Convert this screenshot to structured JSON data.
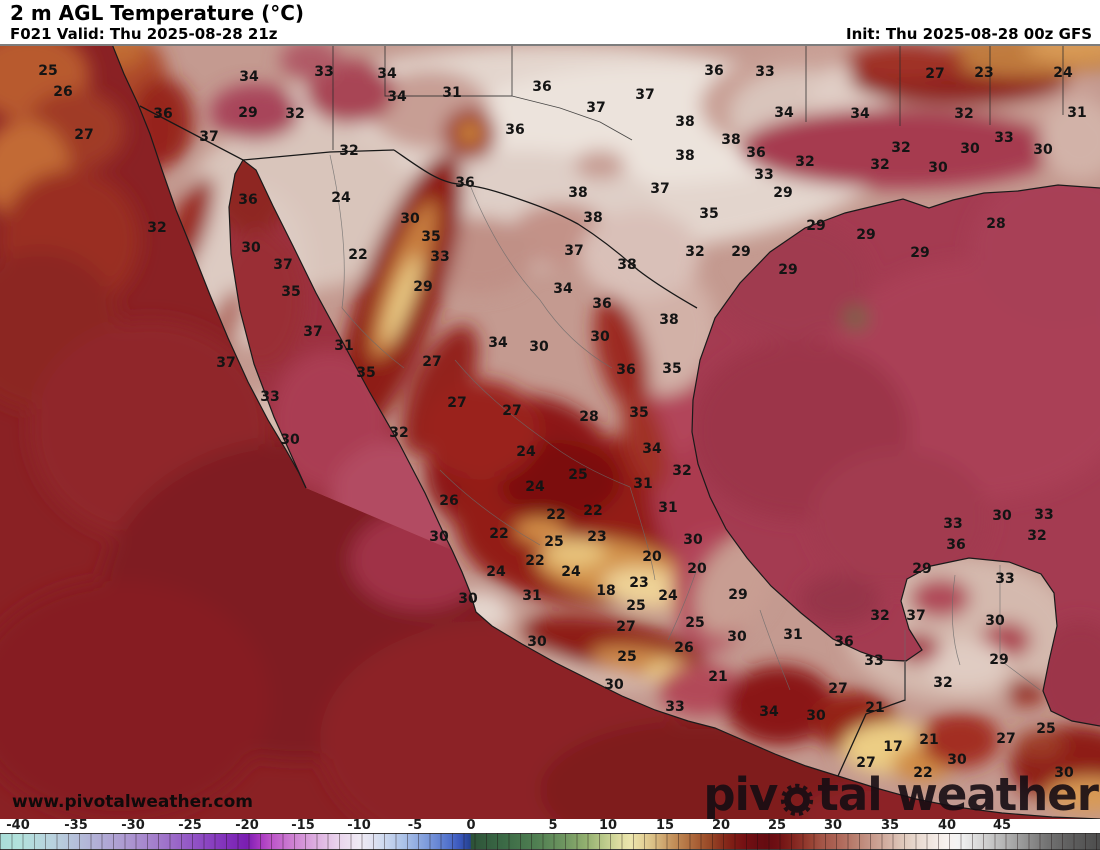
{
  "header": {
    "title": "2 m AGL Temperature (°C)",
    "valid": "F021 Valid: Thu 2025-08-28 21z",
    "init": "Init: Thu 2025-08-28 00z GFS"
  },
  "watermark": "www.pivotalweather.com",
  "logo": {
    "text_before": "piv",
    "text_after": "tal weather"
  },
  "chart_data": {
    "type": "heatmap",
    "title": "2 m AGL Temperature (°C)",
    "model": "GFS",
    "forecast_hour": "F021",
    "valid_time": "Thu 2025-08-28 21z",
    "init_time": "Thu 2025-08-28 00z",
    "units": "°C",
    "region": "Mexico / southern United States / Central America / Gulf of Mexico",
    "colorbar": {
      "orientation": "horizontal",
      "ticks": [
        -40,
        -35,
        -30,
        -25,
        -20,
        -15,
        -10,
        -5,
        0,
        5,
        10,
        15,
        20,
        25,
        30,
        35,
        40,
        45
      ],
      "ticks_x": [
        [
          -40,
          18
        ],
        [
          -35,
          76
        ],
        [
          -30,
          133
        ],
        [
          -25,
          190
        ],
        [
          -20,
          247
        ],
        [
          -15,
          303
        ],
        [
          -10,
          359
        ],
        [
          -5,
          415
        ],
        [
          0,
          471
        ],
        [
          5,
          553
        ],
        [
          10,
          608
        ],
        [
          15,
          665
        ],
        [
          20,
          721
        ],
        [
          25,
          777
        ],
        [
          30,
          833
        ],
        [
          35,
          890
        ],
        [
          40,
          947
        ],
        [
          45,
          1002
        ]
      ],
      "range": [
        -42,
        54
      ],
      "stops": [
        [
          -43,
          "#9fd8d4"
        ],
        [
          -40,
          "#b2e2dc"
        ],
        [
          -37,
          "#b9d2de"
        ],
        [
          -34,
          "#b3b6d8"
        ],
        [
          -31,
          "#ae9dd2"
        ],
        [
          -28,
          "#a47ecc"
        ],
        [
          -25,
          "#9357c6"
        ],
        [
          -22,
          "#8233bc"
        ],
        [
          -20,
          "#7a1eb2"
        ],
        [
          -19,
          "#a233c0"
        ],
        [
          -18,
          "#ba50c8"
        ],
        [
          -16,
          "#cd7fd2"
        ],
        [
          -14,
          "#dcabdf"
        ],
        [
          -12,
          "#e9d2ec"
        ],
        [
          -10,
          "#efeaf4"
        ],
        [
          -9,
          "#e4e4f2"
        ],
        [
          -8,
          "#d2dcf0"
        ],
        [
          -6,
          "#abc2e8"
        ],
        [
          -4,
          "#7e9cdc"
        ],
        [
          -2,
          "#5272cc"
        ],
        [
          -1,
          "#3a57bc"
        ],
        [
          -0.05,
          "#24418f"
        ],
        [
          0,
          "#2d5238"
        ],
        [
          2,
          "#3b6a46"
        ],
        [
          4,
          "#507f52"
        ],
        [
          6,
          "#6e9560"
        ],
        [
          8,
          "#93b070"
        ],
        [
          10,
          "#c3cf90"
        ],
        [
          11,
          "#dedda2"
        ],
        [
          12,
          "#ece6ae"
        ],
        [
          13,
          "#e5d49a"
        ],
        [
          14,
          "#dabf85"
        ],
        [
          15,
          "#cda36c"
        ],
        [
          16,
          "#c08a55"
        ],
        [
          17,
          "#b37343"
        ],
        [
          18,
          "#a65c33"
        ],
        [
          19,
          "#974726"
        ],
        [
          20,
          "#89301d"
        ],
        [
          21,
          "#7f1d15"
        ],
        [
          22,
          "#761113"
        ],
        [
          23,
          "#6b0d12"
        ],
        [
          24,
          "#660b11"
        ],
        [
          25,
          "#6f0f13"
        ],
        [
          26,
          "#7c1d19"
        ],
        [
          27,
          "#8b2e26"
        ],
        [
          28,
          "#984233"
        ],
        [
          29,
          "#a35547"
        ],
        [
          30,
          "#aa5f51"
        ],
        [
          31,
          "#b26f60"
        ],
        [
          32,
          "#ba8171"
        ],
        [
          33,
          "#c39284"
        ],
        [
          34,
          "#cca395"
        ],
        [
          35,
          "#d5b4a7"
        ],
        [
          36,
          "#dec6b9"
        ],
        [
          37,
          "#e6d5ca"
        ],
        [
          38,
          "#ede0d8"
        ],
        [
          39,
          "#f3eae5"
        ],
        [
          40,
          "#f8f2ef"
        ],
        [
          41,
          "#f4f4f4"
        ],
        [
          42,
          "#e6e6e6"
        ],
        [
          43,
          "#d7d7d7"
        ],
        [
          44,
          "#c7c7c7"
        ],
        [
          45,
          "#b7b7b7"
        ],
        [
          46,
          "#a7a7a7"
        ],
        [
          47,
          "#969696"
        ],
        [
          48,
          "#858585"
        ],
        [
          49,
          "#747474"
        ],
        [
          51,
          "#606060"
        ],
        [
          54,
          "#4c4c4c"
        ]
      ]
    },
    "station_values_format": "[x_px, y_px, temperature_C]",
    "station_values": [
      [
        48,
        70,
        25
      ],
      [
        63,
        91,
        26
      ],
      [
        84,
        134,
        27
      ],
      [
        163,
        113,
        36
      ],
      [
        209,
        136,
        37
      ],
      [
        249,
        76,
        34
      ],
      [
        248,
        112,
        29
      ],
      [
        295,
        113,
        32
      ],
      [
        324,
        71,
        33
      ],
      [
        349,
        150,
        32
      ],
      [
        248,
        199,
        36
      ],
      [
        341,
        197,
        24
      ],
      [
        157,
        227,
        32
      ],
      [
        251,
        247,
        30
      ],
      [
        283,
        264,
        37
      ],
      [
        291,
        291,
        35
      ],
      [
        358,
        254,
        22
      ],
      [
        387,
        73,
        34
      ],
      [
        397,
        96,
        34
      ],
      [
        452,
        92,
        31
      ],
      [
        542,
        86,
        36
      ],
      [
        515,
        129,
        36
      ],
      [
        596,
        107,
        37
      ],
      [
        645,
        94,
        37
      ],
      [
        714,
        70,
        36
      ],
      [
        685,
        121,
        38
      ],
      [
        731,
        139,
        38
      ],
      [
        685,
        155,
        38
      ],
      [
        465,
        182,
        36
      ],
      [
        660,
        188,
        37
      ],
      [
        578,
        192,
        38
      ],
      [
        410,
        218,
        30
      ],
      [
        593,
        217,
        38
      ],
      [
        431,
        236,
        35
      ],
      [
        709,
        213,
        35
      ],
      [
        440,
        256,
        33
      ],
      [
        574,
        250,
        37
      ],
      [
        695,
        251,
        32
      ],
      [
        741,
        251,
        29
      ],
      [
        627,
        264,
        38
      ],
      [
        423,
        286,
        29
      ],
      [
        563,
        288,
        34
      ],
      [
        602,
        303,
        36
      ],
      [
        765,
        71,
        33
      ],
      [
        935,
        73,
        27
      ],
      [
        984,
        72,
        23
      ],
      [
        1063,
        72,
        24
      ],
      [
        784,
        112,
        34
      ],
      [
        860,
        113,
        34
      ],
      [
        964,
        113,
        32
      ],
      [
        1077,
        112,
        31
      ],
      [
        756,
        152,
        36
      ],
      [
        1004,
        137,
        33
      ],
      [
        901,
        147,
        32
      ],
      [
        805,
        161,
        32
      ],
      [
        970,
        148,
        30
      ],
      [
        1043,
        149,
        30
      ],
      [
        764,
        174,
        33
      ],
      [
        880,
        164,
        32
      ],
      [
        938,
        167,
        30
      ],
      [
        783,
        192,
        29
      ],
      [
        816,
        225,
        29
      ],
      [
        866,
        234,
        29
      ],
      [
        996,
        223,
        28
      ],
      [
        920,
        252,
        29
      ],
      [
        788,
        269,
        29
      ],
      [
        226,
        362,
        37
      ],
      [
        313,
        331,
        37
      ],
      [
        344,
        345,
        31
      ],
      [
        366,
        372,
        35
      ],
      [
        270,
        396,
        33
      ],
      [
        290,
        439,
        30
      ],
      [
        498,
        342,
        34
      ],
      [
        539,
        346,
        30
      ],
      [
        600,
        336,
        30
      ],
      [
        669,
        319,
        38
      ],
      [
        626,
        369,
        36
      ],
      [
        672,
        368,
        35
      ],
      [
        432,
        361,
        27
      ],
      [
        457,
        402,
        27
      ],
      [
        512,
        410,
        27
      ],
      [
        589,
        416,
        28
      ],
      [
        639,
        412,
        35
      ],
      [
        399,
        432,
        32
      ],
      [
        652,
        448,
        34
      ],
      [
        526,
        451,
        24
      ],
      [
        682,
        470,
        32
      ],
      [
        578,
        474,
        25
      ],
      [
        643,
        483,
        31
      ],
      [
        535,
        486,
        24
      ],
      [
        449,
        500,
        26
      ],
      [
        668,
        507,
        31
      ],
      [
        556,
        514,
        22
      ],
      [
        593,
        510,
        22
      ],
      [
        439,
        536,
        30
      ],
      [
        499,
        533,
        22
      ],
      [
        597,
        536,
        23
      ],
      [
        693,
        539,
        30
      ],
      [
        554,
        541,
        25
      ],
      [
        652,
        556,
        20
      ],
      [
        535,
        560,
        22
      ],
      [
        697,
        568,
        20
      ],
      [
        496,
        571,
        24
      ],
      [
        571,
        571,
        24
      ],
      [
        639,
        582,
        23
      ],
      [
        606,
        590,
        18
      ],
      [
        532,
        595,
        31
      ],
      [
        668,
        595,
        24
      ],
      [
        468,
        598,
        30
      ],
      [
        738,
        594,
        29
      ],
      [
        626,
        626,
        27
      ],
      [
        695,
        622,
        25
      ],
      [
        636,
        605,
        25
      ],
      [
        737,
        636,
        30
      ],
      [
        537,
        641,
        30
      ],
      [
        684,
        647,
        26
      ],
      [
        627,
        656,
        25
      ],
      [
        718,
        676,
        21
      ],
      [
        614,
        684,
        30
      ],
      [
        675,
        706,
        33
      ],
      [
        953,
        523,
        33
      ],
      [
        1002,
        515,
        30
      ],
      [
        1044,
        514,
        33
      ],
      [
        1037,
        535,
        32
      ],
      [
        956,
        544,
        36
      ],
      [
        922,
        568,
        29
      ],
      [
        1005,
        578,
        33
      ],
      [
        880,
        615,
        32
      ],
      [
        916,
        615,
        37
      ],
      [
        995,
        620,
        30
      ],
      [
        793,
        634,
        31
      ],
      [
        844,
        641,
        36
      ],
      [
        874,
        660,
        33
      ],
      [
        999,
        659,
        29
      ],
      [
        943,
        682,
        32
      ],
      [
        838,
        688,
        27
      ],
      [
        769,
        711,
        34
      ],
      [
        816,
        715,
        30
      ],
      [
        875,
        707,
        21
      ],
      [
        1046,
        728,
        25
      ],
      [
        1006,
        738,
        27
      ],
      [
        893,
        746,
        17
      ],
      [
        929,
        739,
        21
      ],
      [
        957,
        759,
        30
      ],
      [
        866,
        762,
        27
      ],
      [
        923,
        772,
        22
      ],
      [
        1064,
        772,
        30
      ]
    ]
  }
}
